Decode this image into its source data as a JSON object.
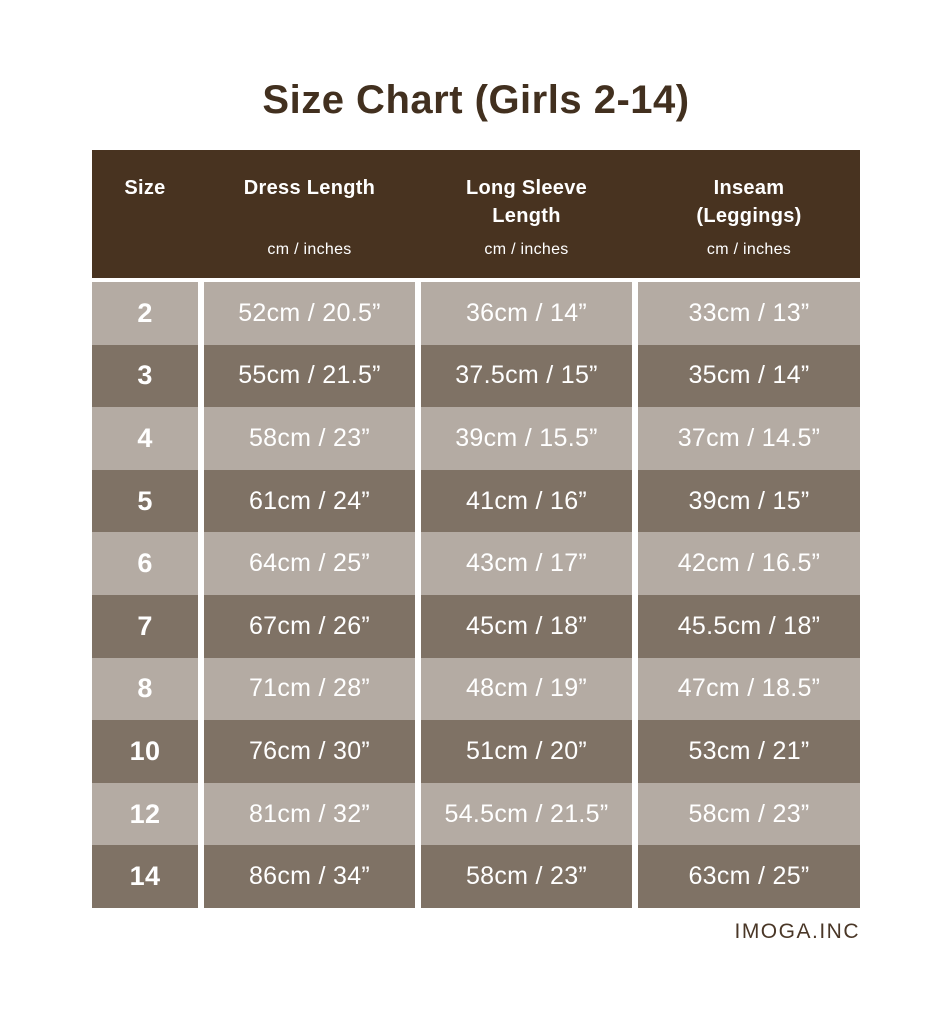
{
  "page": {
    "title": "Size Chart (Girls 2-14)",
    "footer": "IMOGA.INC"
  },
  "colors": {
    "header_bg": "#483320",
    "row_light": "#b4aba3",
    "row_dark": "#7f7265",
    "title_text": "#42301f",
    "cell_text": "#ffffff",
    "page_bg": "#ffffff"
  },
  "chart_data": {
    "type": "table",
    "title": "Size Chart (Girls 2-14)",
    "columns": [
      {
        "label": "Size",
        "label_lines": [
          "Size"
        ],
        "sublabel": ""
      },
      {
        "label": "Dress Length",
        "label_lines": [
          "Dress Length"
        ],
        "sublabel": "cm / inches"
      },
      {
        "label": "Long Sleeve Length",
        "label_lines": [
          "Long Sleeve",
          "Length"
        ],
        "sublabel": "cm / inches"
      },
      {
        "label": "Inseam (Leggings)",
        "label_lines": [
          "Inseam",
          "(Leggings)"
        ],
        "sublabel": "cm / inches"
      }
    ],
    "rows": [
      {
        "size": "2",
        "dress_length": "52cm / 20.5”",
        "sleeve_length": "36cm / 14”",
        "inseam": "33cm / 13”"
      },
      {
        "size": "3",
        "dress_length": "55cm / 21.5”",
        "sleeve_length": "37.5cm / 15”",
        "inseam": "35cm / 14”"
      },
      {
        "size": "4",
        "dress_length": "58cm / 23”",
        "sleeve_length": "39cm / 15.5”",
        "inseam": "37cm / 14.5”"
      },
      {
        "size": "5",
        "dress_length": "61cm / 24”",
        "sleeve_length": "41cm / 16”",
        "inseam": "39cm / 15”"
      },
      {
        "size": "6",
        "dress_length": "64cm / 25”",
        "sleeve_length": "43cm / 17”",
        "inseam": "42cm / 16.5”"
      },
      {
        "size": "7",
        "dress_length": "67cm / 26”",
        "sleeve_length": "45cm / 18”",
        "inseam": "45.5cm / 18”"
      },
      {
        "size": "8",
        "dress_length": "71cm / 28”",
        "sleeve_length": "48cm / 19”",
        "inseam": "47cm / 18.5”"
      },
      {
        "size": "10",
        "dress_length": "76cm / 30”",
        "sleeve_length": "51cm / 20”",
        "inseam": "53cm / 21”"
      },
      {
        "size": "12",
        "dress_length": "81cm / 32”",
        "sleeve_length": "54.5cm / 21.5”",
        "inseam": "58cm / 23”"
      },
      {
        "size": "14",
        "dress_length": "86cm / 34”",
        "sleeve_length": "58cm / 23”",
        "inseam": "63cm / 25”"
      }
    ]
  }
}
